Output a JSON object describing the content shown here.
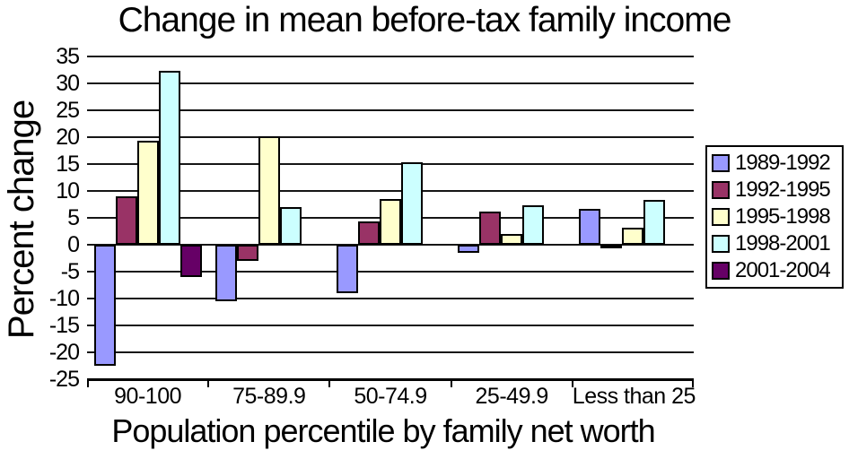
{
  "chart_data": {
    "type": "bar",
    "title": "Change in mean before-tax family income",
    "xlabel": "Population percentile by family net worth",
    "ylabel": "Percent change",
    "ylim": [
      -25,
      35
    ],
    "ytick_step": 5,
    "yticks": [
      35,
      30,
      25,
      20,
      15,
      10,
      5,
      0,
      -5,
      -10,
      -15,
      -20,
      -25
    ],
    "grid": true,
    "legend_position": "right",
    "background_color": "#ffffff",
    "gridline_color": "#161616",
    "categories": [
      "90-100",
      "75-89.9",
      "50-74.9",
      "25-49.9",
      "Less than 25"
    ],
    "series": [
      {
        "name": "1989-1992",
        "color": "#9999FF",
        "values": [
          -22.5,
          -10.5,
          -9.0,
          -1.5,
          6.7
        ]
      },
      {
        "name": "1992-1995",
        "color": "#993366",
        "values": [
          9.0,
          -3.0,
          4.3,
          6.2,
          -0.5
        ]
      },
      {
        "name": "1995-1998",
        "color": "#FFFFCC",
        "values": [
          19.4,
          20.2,
          8.5,
          2.0,
          3.2
        ]
      },
      {
        "name": "1998-2001",
        "color": "#CCFFFF",
        "values": [
          32.3,
          7.0,
          15.3,
          7.3,
          8.3
        ]
      },
      {
        "name": "2001-2004",
        "color": "#660066",
        "values": [
          -6.0,
          0,
          0,
          0,
          0
        ]
      }
    ]
  }
}
